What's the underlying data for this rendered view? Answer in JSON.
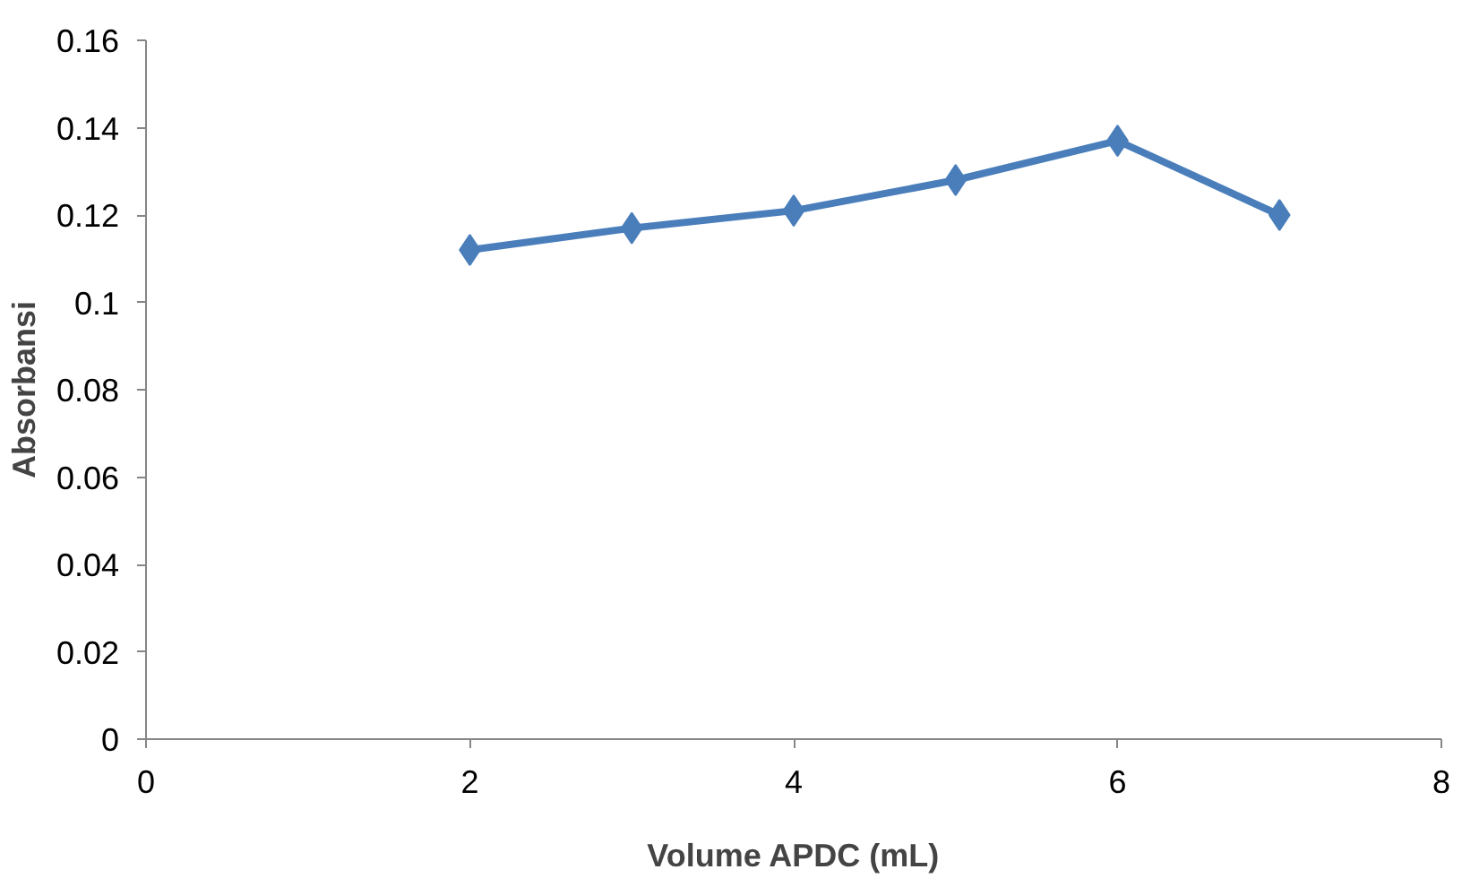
{
  "chart_data": {
    "type": "line",
    "xlabel": "Volume APDC (mL)",
    "ylabel": "Absorbansi",
    "x": [
      2,
      3,
      4,
      5,
      6,
      7
    ],
    "series": [
      {
        "color": "#4a7ebb",
        "values": [
          0.112,
          0.117,
          0.121,
          0.128,
          0.137,
          0.12
        ]
      }
    ],
    "xlim": [
      0,
      8
    ],
    "xticks": [
      0,
      2,
      4,
      6,
      8
    ],
    "ylim": [
      0,
      0.16
    ],
    "yticks": [
      0,
      {
        "value": 0.02,
        "label": "0.02"
      },
      {
        "value": 0.04,
        "label": "0.04"
      },
      {
        "value": 0.06,
        "label": "0.06"
      },
      {
        "value": 0.08,
        "label": "0.08"
      },
      {
        "value": 0.1,
        "label": "0.1"
      },
      {
        "value": 0.12,
        "label": "0.12"
      },
      {
        "value": 0.14,
        "label": "0.14"
      },
      {
        "value": 0.16,
        "label": "0.16"
      }
    ],
    "grid": false,
    "marker": "diamond",
    "line_style": "solid"
  }
}
